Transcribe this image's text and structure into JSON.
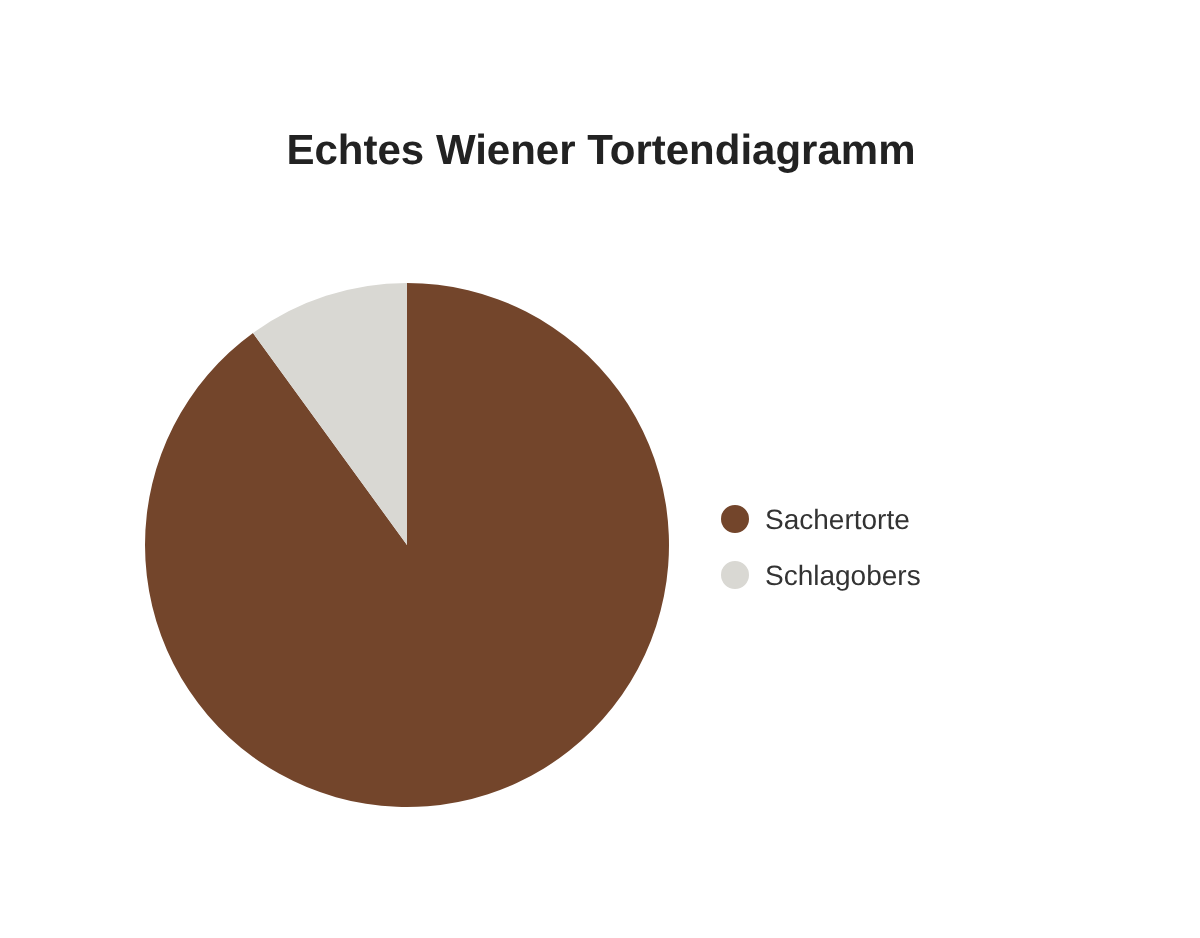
{
  "chart_data": {
    "type": "pie",
    "title": "Echtes Wiener Tortendiagramm",
    "categories": [
      "Sachertorte",
      "Schlagobers"
    ],
    "values": [
      90,
      10
    ],
    "colors": [
      "#73452b",
      "#d9d8d3"
    ],
    "legend": "right"
  }
}
